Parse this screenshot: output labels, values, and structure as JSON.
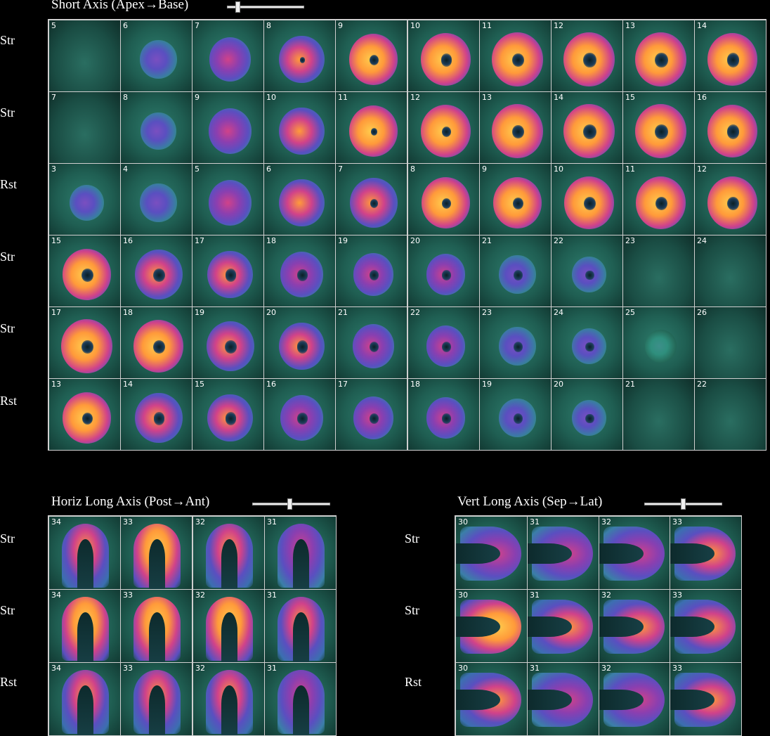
{
  "short_axis": {
    "title": "Short Axis (Apex→Base)",
    "slider_value": 0.12,
    "rows": [
      {
        "label": "Str",
        "nums": [
          "5",
          "6",
          "7",
          "8",
          "9",
          "10",
          "11",
          "12",
          "13",
          "14"
        ],
        "level": [
          0.0,
          0.35,
          0.55,
          0.7,
          0.85,
          0.9,
          0.95,
          0.95,
          0.95,
          0.9
        ],
        "hole": [
          0,
          0,
          0,
          0.2,
          0.35,
          0.4,
          0.4,
          0.45,
          0.45,
          0.45
        ]
      },
      {
        "label": "Str",
        "nums": [
          "7",
          "8",
          "9",
          "10",
          "11",
          "12",
          "13",
          "14",
          "15",
          "16"
        ],
        "level": [
          0.0,
          0.3,
          0.6,
          0.7,
          0.85,
          0.9,
          0.95,
          0.95,
          0.95,
          0.9
        ],
        "hole": [
          0,
          0,
          0,
          0,
          0.25,
          0.35,
          0.4,
          0.45,
          0.45,
          0.45
        ]
      },
      {
        "label": "Rst",
        "nums": [
          "3",
          "4",
          "5",
          "6",
          "7",
          "8",
          "9",
          "10",
          "11",
          "12"
        ],
        "level": [
          0.25,
          0.35,
          0.6,
          0.7,
          0.8,
          0.85,
          0.85,
          0.9,
          0.9,
          0.9
        ],
        "hole": [
          0,
          0,
          0,
          0,
          0.3,
          0.35,
          0.4,
          0.42,
          0.42,
          0.42
        ]
      },
      {
        "label": "Str",
        "nums": [
          "15",
          "16",
          "17",
          "18",
          "19",
          "20",
          "21",
          "22",
          "23",
          "24"
        ],
        "level": [
          0.85,
          0.8,
          0.7,
          0.6,
          0.5,
          0.45,
          0.35,
          0.25,
          0.05,
          0.0
        ],
        "hole": [
          0.45,
          0.45,
          0.45,
          0.42,
          0.4,
          0.4,
          0.45,
          0.45,
          0,
          0
        ]
      },
      {
        "label": "Str",
        "nums": [
          "17",
          "18",
          "19",
          "20",
          "21",
          "22",
          "23",
          "24",
          "25",
          "26"
        ],
        "level": [
          0.95,
          0.9,
          0.8,
          0.7,
          0.55,
          0.45,
          0.35,
          0.25,
          0.15,
          0.0
        ],
        "hole": [
          0.4,
          0.42,
          0.45,
          0.45,
          0.42,
          0.42,
          0.45,
          0.45,
          0,
          0
        ]
      },
      {
        "label": "Rst",
        "nums": [
          "13",
          "14",
          "15",
          "16",
          "17",
          "18",
          "19",
          "20",
          "21",
          "22"
        ],
        "level": [
          0.85,
          0.8,
          0.7,
          0.6,
          0.5,
          0.45,
          0.35,
          0.25,
          0.05,
          0.0
        ],
        "hole": [
          0.4,
          0.42,
          0.45,
          0.42,
          0.4,
          0.4,
          0.45,
          0.45,
          0,
          0
        ]
      }
    ]
  },
  "horiz_long_axis": {
    "title": "Horiz Long Axis (Post→Ant)",
    "slider_value": 0.48,
    "rows": [
      {
        "label": "Str",
        "nums": [
          "34",
          "33",
          "32",
          "31"
        ],
        "level": [
          0.8,
          0.85,
          0.8,
          0.6
        ]
      },
      {
        "label": "Str",
        "nums": [
          "34",
          "33",
          "32",
          "31"
        ],
        "level": [
          0.95,
          0.95,
          0.9,
          0.75
        ]
      },
      {
        "label": "Rst",
        "nums": [
          "34",
          "33",
          "32",
          "31"
        ],
        "level": [
          0.75,
          0.75,
          0.7,
          0.6
        ]
      }
    ]
  },
  "vert_long_axis": {
    "title": "Vert Long Axis (Sep→Lat)",
    "slider_value": 0.5,
    "rows": [
      {
        "label": "Str",
        "nums": [
          "30",
          "31",
          "32",
          "33"
        ],
        "level": [
          0.45,
          0.5,
          0.6,
          0.8
        ]
      },
      {
        "label": "Str",
        "nums": [
          "30",
          "31",
          "32",
          "33"
        ],
        "level": [
          0.85,
          0.7,
          0.7,
          0.8
        ]
      },
      {
        "label": "Rst",
        "nums": [
          "30",
          "31",
          "32",
          "33"
        ],
        "level": [
          0.7,
          0.6,
          0.6,
          0.7
        ]
      }
    ]
  },
  "colors": {
    "background": "#000000",
    "border": "#cfcfcf",
    "tissue": "#2f8f7d",
    "hot": "#ffcc4d",
    "mid": "#d0428a",
    "cool": "#5a4fc0"
  }
}
